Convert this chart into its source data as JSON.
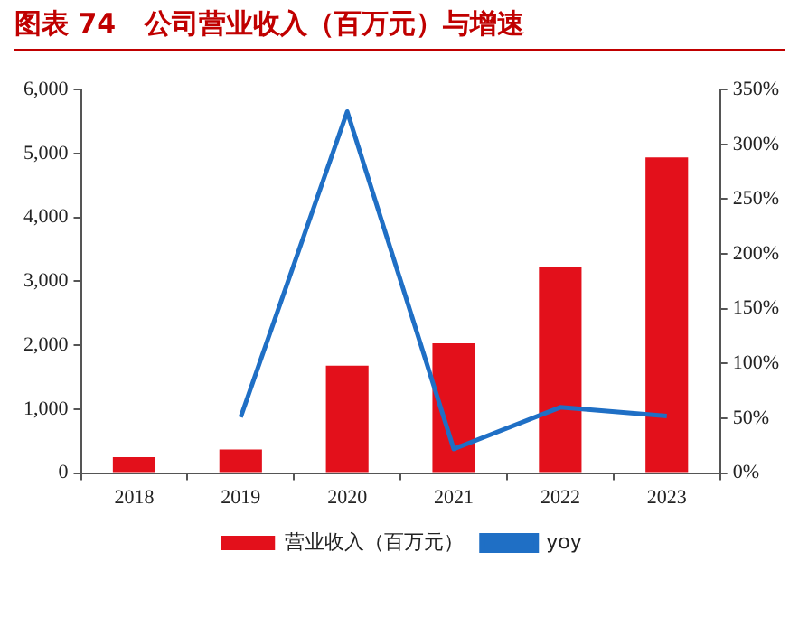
{
  "chart_data": {
    "type": "bar",
    "title": "图表 74   公司营业收入（百万元）与增速",
    "categories": [
      "2018",
      "2019",
      "2020",
      "2021",
      "2022",
      "2023"
    ],
    "series": [
      {
        "name": "营业收入（百万元）",
        "color": "#e3101b",
        "values": [
          250,
          370,
          1680,
          2030,
          3230,
          4940
        ]
      },
      {
        "name": "yoy",
        "type": "line",
        "axis": "y2",
        "color": "#1f6fc5",
        "values": [
          null,
          51,
          330,
          22,
          60,
          52
        ]
      }
    ],
    "ylim": [
      0,
      6000
    ],
    "yticks": [
      {
        "value": 0,
        "label": "0"
      },
      {
        "value": 1000,
        "label": "1,000"
      },
      {
        "value": 2000,
        "label": "2,000"
      },
      {
        "value": 3000,
        "label": "3,000"
      },
      {
        "value": 4000,
        "label": "4,000"
      },
      {
        "value": 5000,
        "label": "5,000"
      },
      {
        "value": 6000,
        "label": "6,000"
      }
    ],
    "y2lim": [
      0,
      350
    ],
    "y2ticks": [
      {
        "value": 0,
        "label": "0%"
      },
      {
        "value": 50,
        "label": "50%"
      },
      {
        "value": 100,
        "label": "100%"
      },
      {
        "value": 150,
        "label": "150%"
      },
      {
        "value": 200,
        "label": "200%"
      },
      {
        "value": 250,
        "label": "250%"
      },
      {
        "value": 300,
        "label": "300%"
      },
      {
        "value": 350,
        "label": "350%"
      }
    ],
    "legend": "bottom",
    "marker": "none"
  }
}
